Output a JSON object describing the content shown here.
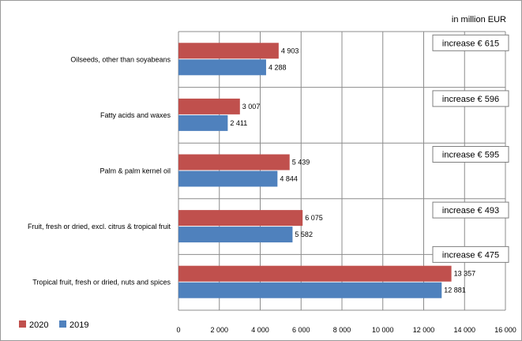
{
  "chart_data": {
    "type": "bar",
    "orientation": "horizontal",
    "unit_label": "in million EUR",
    "categories": [
      "Oilseeds, other than soyabeans",
      "Fatty acids and waxes",
      "Palm & palm kernel oil",
      "Fruit, fresh or dried, excl. citrus & tropical fruit",
      "Tropical fruit, fresh or dried, nuts and spices"
    ],
    "series": [
      {
        "name": "2020",
        "color": "#c0504d",
        "values": [
          4903,
          3007,
          5439,
          6075,
          13357
        ],
        "labels": [
          "4 903",
          "3 007",
          "5 439",
          "6 075",
          "13 357"
        ]
      },
      {
        "name": "2019",
        "color": "#4f81bd",
        "values": [
          4288,
          2411,
          4844,
          5582,
          12881
        ],
        "labels": [
          "4 288",
          "2 411",
          "4 844",
          "5 582",
          "12 881"
        ]
      }
    ],
    "annotations": [
      "increase € 615",
      "increase € 596",
      "increase € 595",
      "increase € 493",
      "increase € 475"
    ],
    "xlim": [
      0,
      16000
    ],
    "xticks": [
      0,
      2000,
      4000,
      6000,
      8000,
      10000,
      12000,
      14000,
      16000
    ],
    "xtick_labels": [
      "0",
      "2 000",
      "4 000",
      "6 000",
      "8 000",
      "10 000",
      "12 000",
      "14 000",
      "16 000"
    ],
    "grid": true,
    "legend_position": "bottom-left"
  }
}
